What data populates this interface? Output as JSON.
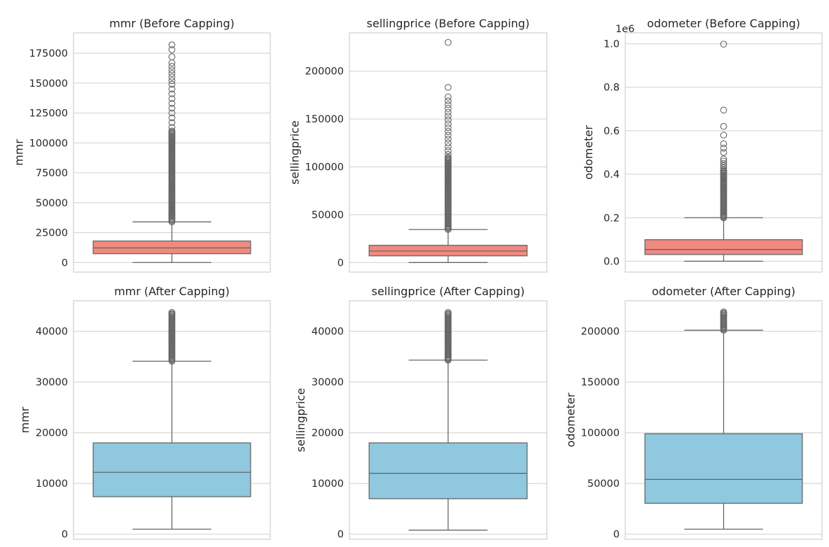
{
  "chart_data": [
    {
      "type": "box",
      "title": "mmr (Before Capping)",
      "ylabel": "mmr",
      "ylim": [
        -8000,
        192000
      ],
      "yticks": [
        0,
        25000,
        50000,
        75000,
        100000,
        125000,
        150000,
        175000
      ],
      "ytick_labels": [
        "0",
        "25000",
        "50000",
        "75000",
        "100000",
        "125000",
        "150000",
        "175000"
      ],
      "box_color": "#F08A80",
      "stats": {
        "whisker_low": 25,
        "q1": 7400,
        "median": 12200,
        "q3": 18000,
        "whisker_high": 34000
      },
      "outliers": {
        "dense_from": 34000,
        "dense_to": 110000,
        "sparse": [
          113000,
          117000,
          121000,
          125000,
          129000,
          133000,
          137000,
          141000,
          145000,
          149000,
          152000,
          155000,
          158000,
          161000,
          164000,
          167000,
          172000,
          178000,
          182000
        ]
      }
    },
    {
      "type": "box",
      "title": "sellingprice (Before Capping)",
      "ylabel": "sellingprice",
      "ylim": [
        -10000,
        240000
      ],
      "yticks": [
        0,
        50000,
        100000,
        150000,
        200000
      ],
      "ytick_labels": [
        "0",
        "50000",
        "100000",
        "150000",
        "200000"
      ],
      "box_color": "#F08A80",
      "stats": {
        "whisker_low": 1,
        "q1": 7000,
        "median": 12000,
        "q3": 18000,
        "whisker_high": 34500
      },
      "outliers": {
        "dense_from": 34500,
        "dense_to": 110000,
        "sparse": [
          113000,
          117000,
          121000,
          125000,
          129000,
          133000,
          137000,
          141000,
          145000,
          149000,
          153000,
          157000,
          161000,
          165000,
          169000,
          173000,
          183000,
          230000
        ]
      }
    },
    {
      "type": "box",
      "title": "odometer (Before Capping)",
      "ylabel": "odometer",
      "ylim": [
        -0.05,
        1.05
      ],
      "yticks": [
        0.0,
        0.2,
        0.4,
        0.6,
        0.8,
        1.0
      ],
      "ytick_labels": [
        "0.0",
        "0.2",
        "0.4",
        "0.6",
        "0.8",
        "1.0"
      ],
      "y_offset_label": "1e6",
      "box_color": "#F08A80",
      "stats": {
        "whisker_low": 0.0,
        "q1": 0.031,
        "median": 0.054,
        "q3": 0.099,
        "whisker_high": 0.2
      },
      "outliers": {
        "dense_from": 0.2,
        "dense_to": 0.42,
        "sparse": [
          0.43,
          0.44,
          0.45,
          0.46,
          0.47,
          0.5,
          0.52,
          0.54,
          0.58,
          0.62,
          0.695,
          0.998
        ]
      }
    },
    {
      "type": "box",
      "title": "mmr (After Capping)",
      "ylabel": "mmr",
      "ylim": [
        -1000,
        46000
      ],
      "yticks": [
        0,
        10000,
        20000,
        30000,
        40000
      ],
      "ytick_labels": [
        "0",
        "10000",
        "20000",
        "30000",
        "40000"
      ],
      "box_color": "#8FC8DF",
      "stats": {
        "whisker_low": 1000,
        "q1": 7400,
        "median": 12200,
        "q3": 18000,
        "whisker_high": 34100
      },
      "outliers": {
        "dense_from": 34100,
        "dense_to": 43700,
        "sparse": []
      }
    },
    {
      "type": "box",
      "title": "sellingprice (After Capping)",
      "ylabel": "sellingprice",
      "ylim": [
        -1000,
        46000
      ],
      "yticks": [
        0,
        10000,
        20000,
        30000,
        40000
      ],
      "ytick_labels": [
        "0",
        "10000",
        "20000",
        "30000",
        "40000"
      ],
      "box_color": "#8FC8DF",
      "stats": {
        "whisker_low": 800,
        "q1": 7000,
        "median": 12000,
        "q3": 18000,
        "whisker_high": 34300
      },
      "outliers": {
        "dense_from": 34300,
        "dense_to": 43700,
        "sparse": []
      }
    },
    {
      "type": "box",
      "title": "odometer (After Capping)",
      "ylabel": "odometer",
      "ylim": [
        -5000,
        230000
      ],
      "yticks": [
        0,
        50000,
        100000,
        150000,
        200000
      ],
      "ytick_labels": [
        "0",
        "50000",
        "100000",
        "150000",
        "200000"
      ],
      "box_color": "#8FC8DF",
      "stats": {
        "whisker_low": 5000,
        "q1": 30500,
        "median": 54000,
        "q3": 99000,
        "whisker_high": 201000
      },
      "outliers": {
        "dense_from": 201000,
        "dense_to": 219000,
        "sparse": []
      }
    }
  ]
}
